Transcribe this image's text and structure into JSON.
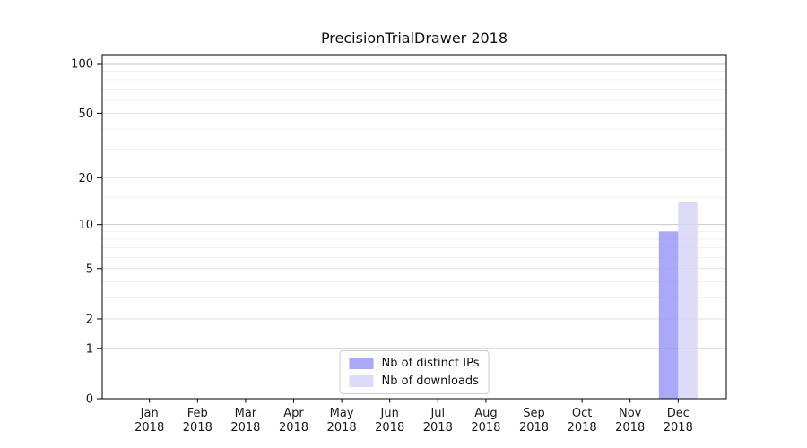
{
  "chart_data": {
    "type": "bar",
    "title": "PrecisionTrialDrawer 2018",
    "xlabel": "",
    "ylabel": "",
    "x_year": "2018",
    "months": [
      "Jan",
      "Feb",
      "Mar",
      "Apr",
      "May",
      "Jun",
      "Jul",
      "Aug",
      "Sep",
      "Oct",
      "Nov",
      "Dec"
    ],
    "categories": [
      "Jan 2018",
      "Feb 2018",
      "Mar 2018",
      "Apr 2018",
      "May 2018",
      "Jun 2018",
      "Jul 2018",
      "Aug 2018",
      "Sep 2018",
      "Oct 2018",
      "Nov 2018",
      "Dec 2018"
    ],
    "series": [
      {
        "name": "Nb of distinct IPs",
        "color": "#a9a9f7",
        "values": [
          0,
          0,
          0,
          0,
          0,
          0,
          0,
          0,
          0,
          0,
          0,
          9
        ]
      },
      {
        "name": "Nb of downloads",
        "color": "#dcdcfa",
        "values": [
          0,
          0,
          0,
          0,
          0,
          0,
          0,
          0,
          0,
          0,
          0,
          14
        ]
      }
    ],
    "y_ticks": [
      0,
      1,
      2,
      5,
      10,
      20,
      50,
      100
    ],
    "y_minor_ticks": [
      3,
      4,
      6,
      7,
      8,
      9,
      15,
      30,
      40,
      60,
      70,
      80,
      90
    ],
    "scale": "log1p",
    "ylim": [
      0,
      113
    ],
    "grid": true,
    "legend_position": "lower center"
  },
  "colors": {
    "background": "#ffffff",
    "axis": "#000000",
    "text": "#1a1a1a",
    "grid_power": "#c9c9c9",
    "grid_major": "#e2e2e2",
    "grid_minor": "#efefef",
    "legend_border": "#cccccc"
  }
}
